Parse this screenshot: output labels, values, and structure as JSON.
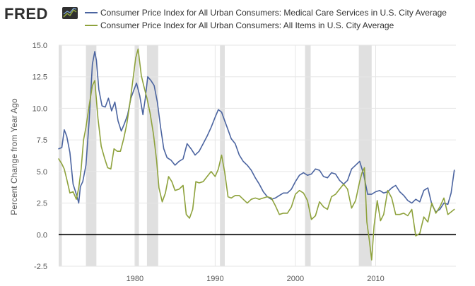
{
  "logo": {
    "text": "FRED"
  },
  "colors": {
    "medical": "#4b64a0",
    "all_items": "#8ea23c",
    "recession": "#e0e0e0",
    "grid": "#e6e6e6",
    "zero": "#000000",
    "logo_bg": "#2f2f2f"
  },
  "chart_data": {
    "type": "line",
    "title": "",
    "xlabel": "",
    "ylabel": "Percent Change from Year Ago",
    "xlim": [
      1970.5,
      2020.0
    ],
    "ylim": [
      -2.5,
      15.0
    ],
    "y_ticks": [
      -2.5,
      0.0,
      2.5,
      5.0,
      7.5,
      10.0,
      12.5,
      15.0
    ],
    "y_tick_labels": [
      "-2.5",
      "0.0",
      "2.5",
      "5.0",
      "7.5",
      "10.0",
      "12.5",
      "15.0"
    ],
    "x_ticks": [
      1980,
      1990,
      2000,
      2010
    ],
    "x_tick_labels": [
      "1980",
      "1990",
      "2000",
      "2010"
    ],
    "zero_line": 0.0,
    "grid": true,
    "legend_position": "top",
    "recessions": [
      [
        1970.5,
        1970.9
      ],
      [
        1973.9,
        1975.2
      ],
      [
        1980.0,
        1980.5
      ],
      [
        1981.5,
        1982.9
      ],
      [
        1990.6,
        1991.2
      ],
      [
        2001.2,
        2001.9
      ],
      [
        2007.9,
        2009.5
      ]
    ],
    "series": [
      {
        "name": "Consumer Price Index for All Urban Consumers: Medical Care Services in U.S. City Average",
        "color_key": "medical",
        "x": [
          1970.5,
          1970.9,
          1971.2,
          1971.5,
          1971.9,
          1972.3,
          1972.7,
          1973.0,
          1973.2,
          1973.5,
          1973.9,
          1974.3,
          1974.7,
          1975.0,
          1975.2,
          1975.5,
          1975.9,
          1976.3,
          1976.7,
          1977.1,
          1977.5,
          1977.9,
          1978.3,
          1978.7,
          1979.1,
          1979.5,
          1979.9,
          1980.2,
          1980.6,
          1981.0,
          1981.3,
          1981.6,
          1982.0,
          1982.4,
          1982.8,
          1983.2,
          1983.6,
          1984.0,
          1984.5,
          1985.0,
          1985.5,
          1986.0,
          1986.5,
          1987.0,
          1987.5,
          1988.0,
          1988.5,
          1989.0,
          1989.5,
          1990.0,
          1990.4,
          1990.8,
          1991.2,
          1991.6,
          1992.0,
          1992.5,
          1993.0,
          1993.5,
          1994.0,
          1994.5,
          1995.0,
          1995.5,
          1996.0,
          1996.5,
          1997.0,
          1997.5,
          1998.0,
          1998.5,
          1999.0,
          1999.5,
          2000.0,
          2000.5,
          2001.0,
          2001.5,
          2002.0,
          2002.5,
          2003.0,
          2003.5,
          2004.0,
          2004.5,
          2005.0,
          2005.5,
          2006.0,
          2006.5,
          2007.0,
          2007.5,
          2008.0,
          2008.5,
          2009.0,
          2009.5,
          2010.0,
          2010.5,
          2011.0,
          2011.5,
          2012.0,
          2012.5,
          2013.0,
          2013.5,
          2014.0,
          2014.5,
          2015.0,
          2015.5,
          2016.0,
          2016.5,
          2017.0,
          2017.5,
          2018.0,
          2018.5,
          2019.0,
          2019.4,
          2019.8
        ],
        "values": [
          6.8,
          6.9,
          8.3,
          7.8,
          6.5,
          4.0,
          3.2,
          2.5,
          3.8,
          4.2,
          5.5,
          9.0,
          13.5,
          14.5,
          13.8,
          11.5,
          10.2,
          10.1,
          10.8,
          9.8,
          10.5,
          9.0,
          8.2,
          8.8,
          9.5,
          10.8,
          11.5,
          12.0,
          11.0,
          9.5,
          10.8,
          12.5,
          12.2,
          11.8,
          10.5,
          8.5,
          6.8,
          6.1,
          5.9,
          5.5,
          5.8,
          6.0,
          7.2,
          6.8,
          6.3,
          6.6,
          7.2,
          7.8,
          8.5,
          9.3,
          9.9,
          9.7,
          9.0,
          8.3,
          7.6,
          7.2,
          6.3,
          5.8,
          5.5,
          5.1,
          4.5,
          4.0,
          3.4,
          3.0,
          2.8,
          2.9,
          3.1,
          3.3,
          3.3,
          3.6,
          4.2,
          4.7,
          4.9,
          4.7,
          4.8,
          5.2,
          5.1,
          4.6,
          4.5,
          4.9,
          4.8,
          4.3,
          4.0,
          4.3,
          5.2,
          5.5,
          5.8,
          4.8,
          3.2,
          3.2,
          3.4,
          3.5,
          3.3,
          3.4,
          3.7,
          3.9,
          3.4,
          3.1,
          2.7,
          2.5,
          2.8,
          2.6,
          3.5,
          3.7,
          2.4,
          1.8,
          2.0,
          2.5,
          2.4,
          3.3,
          5.1
        ]
      },
      {
        "name": "Consumer Price Index for All Urban Consumers: All Items in U.S. City Average",
        "color_key": "all_items",
        "x": [
          1970.5,
          1970.9,
          1971.2,
          1971.5,
          1971.9,
          1972.3,
          1972.7,
          1973.0,
          1973.3,
          1973.6,
          1973.9,
          1974.3,
          1974.7,
          1975.0,
          1975.4,
          1975.8,
          1976.2,
          1976.6,
          1977.0,
          1977.4,
          1977.8,
          1978.2,
          1978.6,
          1979.0,
          1979.4,
          1979.8,
          1980.1,
          1980.4,
          1980.8,
          1981.1,
          1981.5,
          1981.9,
          1982.3,
          1982.7,
          1983.0,
          1983.4,
          1983.8,
          1984.2,
          1984.6,
          1985.0,
          1985.5,
          1986.0,
          1986.4,
          1986.8,
          1987.2,
          1987.6,
          1988.0,
          1988.5,
          1989.0,
          1989.5,
          1990.0,
          1990.4,
          1990.8,
          1991.2,
          1991.6,
          1992.0,
          1992.5,
          1993.0,
          1993.5,
          1994.0,
          1994.5,
          1995.0,
          1995.5,
          1996.0,
          1996.5,
          1997.0,
          1997.5,
          1998.0,
          1998.5,
          1999.0,
          1999.5,
          2000.0,
          2000.5,
          2001.0,
          2001.5,
          2002.0,
          2002.5,
          2003.0,
          2003.5,
          2004.0,
          2004.5,
          2005.0,
          2005.5,
          2006.0,
          2006.5,
          2007.0,
          2007.5,
          2008.0,
          2008.3,
          2008.6,
          2008.9,
          2009.2,
          2009.5,
          2009.8,
          2010.2,
          2010.6,
          2011.0,
          2011.5,
          2012.0,
          2012.5,
          2013.0,
          2013.5,
          2014.0,
          2014.5,
          2015.0,
          2015.5,
          2016.0,
          2016.5,
          2017.0,
          2017.5,
          2018.0,
          2018.5,
          2019.0,
          2019.4,
          2019.8
        ],
        "values": [
          6.0,
          5.6,
          5.2,
          4.4,
          3.3,
          3.4,
          2.8,
          3.7,
          5.2,
          7.5,
          8.5,
          10.2,
          11.8,
          12.2,
          9.2,
          7.0,
          6.1,
          5.3,
          5.2,
          6.8,
          6.6,
          6.6,
          7.6,
          8.8,
          10.5,
          12.5,
          14.0,
          14.7,
          12.6,
          11.8,
          10.8,
          9.6,
          8.0,
          5.9,
          3.7,
          2.6,
          3.3,
          4.6,
          4.2,
          3.5,
          3.6,
          3.9,
          1.6,
          1.3,
          2.0,
          4.2,
          4.1,
          4.2,
          4.6,
          5.0,
          4.6,
          5.2,
          6.3,
          4.9,
          3.0,
          2.9,
          3.1,
          3.1,
          2.8,
          2.5,
          2.8,
          2.9,
          2.8,
          2.9,
          3.0,
          2.9,
          2.3,
          1.6,
          1.7,
          1.7,
          2.2,
          3.2,
          3.5,
          3.3,
          2.7,
          1.2,
          1.5,
          2.6,
          2.2,
          2.0,
          3.0,
          3.2,
          3.6,
          4.0,
          3.6,
          2.1,
          2.7,
          4.2,
          4.9,
          5.3,
          1.0,
          -0.4,
          -2.0,
          0.7,
          2.7,
          1.1,
          1.6,
          3.5,
          2.9,
          1.6,
          1.6,
          1.7,
          1.5,
          2.0,
          -0.1,
          0.1,
          1.4,
          1.0,
          2.5,
          1.7,
          2.2,
          2.9,
          1.6,
          1.8,
          2.0
        ]
      }
    ]
  }
}
